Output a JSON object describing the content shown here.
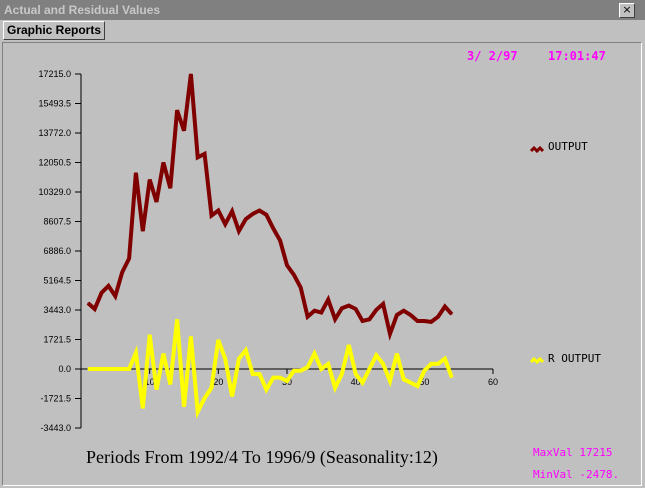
{
  "window": {
    "title": "Actual and Residual Values",
    "close_glyph": "×"
  },
  "menu": {
    "graphic_reports": "Graphic Reports"
  },
  "header": {
    "date": "3/ 2/97",
    "time": "17:01:47"
  },
  "footer": {
    "periods": "Periods From 1992/4 To 1996/9 (Seasonality:12)",
    "maxval": "MaxVal 17215",
    "minval": "MinVal -2478."
  },
  "colors": {
    "output": "#800000",
    "r_output": "#ffff00",
    "magenta": "#ff00ff",
    "axis": "#000000",
    "background": "#c0c0c0"
  },
  "legend_icon": "squiggle-icon",
  "chart_data": {
    "type": "line",
    "title": "",
    "xlabel": "Periods From 1992/4 To 1996/9 (Seasonality:12)",
    "ylabel": "",
    "xlim": [
      0,
      60
    ],
    "ylim": [
      -3443.0,
      17215.0
    ],
    "x_ticks": [
      10,
      20,
      30,
      40,
      50,
      60
    ],
    "y_ticks": [
      "17215.0",
      "15493.5",
      "13772.0",
      "12050.5",
      "10329.0",
      "8607.5",
      "6886.0",
      "5164.5",
      "3443.0",
      "1721.5",
      "0.0",
      "-1721.5",
      "-3443.0"
    ],
    "y_tick_values": [
      17215.0,
      15493.5,
      13772.0,
      12050.5,
      10329.0,
      8607.5,
      6886.0,
      5164.5,
      3443.0,
      1721.5,
      0.0,
      -1721.5,
      -3443.0
    ],
    "grid": false,
    "legend_position": "right",
    "series": [
      {
        "name": "OUTPUT",
        "color": "#800000",
        "x": [
          1,
          2,
          3,
          4,
          5,
          6,
          7,
          8,
          9,
          10,
          11,
          12,
          13,
          14,
          15,
          16,
          17,
          18,
          19,
          20,
          21,
          22,
          23,
          24,
          25,
          26,
          27,
          28,
          29,
          30,
          31,
          32,
          33,
          34,
          35,
          36,
          37,
          38,
          39,
          40,
          41,
          42,
          43,
          44,
          45,
          46,
          47,
          48,
          49,
          50,
          51,
          52,
          53,
          54
        ],
        "values": [
          3850,
          3500,
          4450,
          4850,
          4250,
          5650,
          6450,
          11450,
          8050,
          11050,
          9750,
          12050,
          10550,
          15100,
          13900,
          17215,
          12350,
          12550,
          8950,
          9250,
          8450,
          9200,
          8050,
          8750,
          9050,
          9250,
          9000,
          8200,
          7500,
          6050,
          5500,
          4750,
          3050,
          3400,
          3300,
          4050,
          2900,
          3550,
          3700,
          3500,
          2800,
          2900,
          3450,
          3800,
          2050,
          3150,
          3400,
          3150,
          2800,
          2800,
          2750,
          3050,
          3650,
          3200
        ]
      },
      {
        "name": "R OUTPUT",
        "color": "#ffff00",
        "x": [
          1,
          2,
          3,
          4,
          5,
          6,
          7,
          8,
          9,
          10,
          11,
          12,
          13,
          14,
          15,
          16,
          17,
          18,
          19,
          20,
          21,
          22,
          23,
          24,
          25,
          26,
          27,
          28,
          29,
          30,
          31,
          32,
          33,
          34,
          35,
          36,
          37,
          38,
          39,
          40,
          41,
          42,
          43,
          44,
          45,
          46,
          47,
          48,
          49,
          50,
          51,
          52,
          53,
          54
        ],
        "values": [
          0,
          0,
          0,
          0,
          0,
          0,
          0,
          950,
          -2300,
          2000,
          -1200,
          900,
          -900,
          2900,
          -2200,
          1900,
          -2500,
          -1700,
          -1100,
          1700,
          600,
          -1600,
          600,
          1100,
          -300,
          -300,
          -1200,
          -500,
          -500,
          -700,
          -100,
          -100,
          100,
          900,
          0,
          300,
          -1100,
          -300,
          1400,
          -300,
          -800,
          0,
          800,
          300,
          -700,
          900,
          -600,
          -800,
          -1000,
          -100,
          300,
          300,
          600,
          -500
        ]
      }
    ]
  }
}
